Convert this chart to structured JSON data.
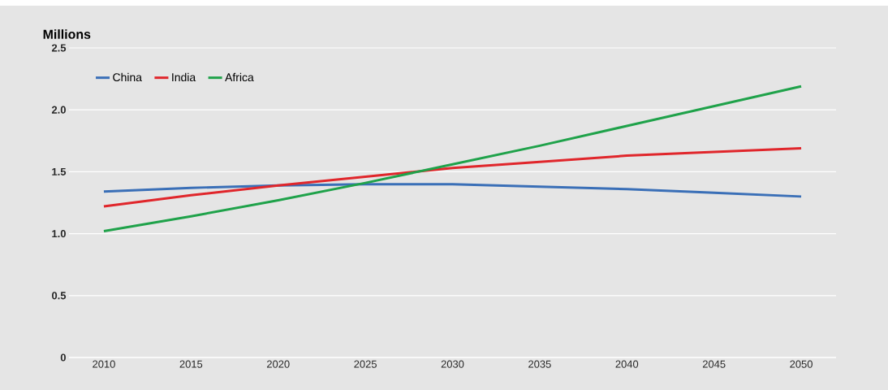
{
  "chart_data": {
    "type": "line",
    "ylabel": "Millions",
    "x": [
      2010,
      2015,
      2020,
      2025,
      2030,
      2035,
      2040,
      2045,
      2050
    ],
    "series": [
      {
        "name": "China",
        "color": "#3a6fb7",
        "values": [
          1.34,
          1.37,
          1.39,
          1.4,
          1.4,
          1.38,
          1.36,
          1.33,
          1.3
        ]
      },
      {
        "name": "India",
        "color": "#e0262b",
        "values": [
          1.22,
          1.31,
          1.39,
          1.46,
          1.53,
          1.58,
          1.63,
          1.66,
          1.69
        ]
      },
      {
        "name": "Africa",
        "color": "#1fa24a",
        "values": [
          1.02,
          1.14,
          1.27,
          1.41,
          1.56,
          1.71,
          1.87,
          2.03,
          2.19
        ]
      }
    ],
    "xlim": [
      2008,
      2052
    ],
    "ylim": [
      0,
      2.5
    ],
    "xticks": [
      2010,
      2015,
      2020,
      2025,
      2030,
      2035,
      2040,
      2045,
      2050
    ],
    "yticks": [
      0,
      {
        "value": 0.5,
        "label": "0.5"
      },
      {
        "value": 1,
        "label": "1.0"
      },
      {
        "value": 1.5,
        "label": "1.5"
      },
      {
        "value": 2,
        "label": "2.0"
      },
      {
        "value": 2.5,
        "label": "2.5"
      }
    ],
    "grid": "y",
    "legend": "top left",
    "marker": "none",
    "line_style": "solid"
  }
}
